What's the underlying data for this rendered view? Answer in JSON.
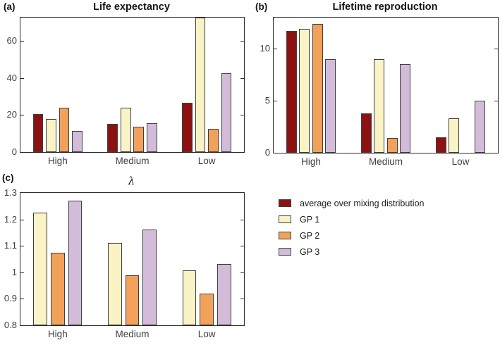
{
  "figure": {
    "background": "#ffffff",
    "panels": [
      {
        "key": "a",
        "letter": "(a)",
        "title": "Life expectancy"
      },
      {
        "key": "b",
        "letter": "(b)",
        "title": "Lifetime reproduction"
      },
      {
        "key": "c",
        "letter": "(c)",
        "title": "λ"
      }
    ],
    "legend": {
      "items": [
        {
          "label": "average over mixing distribution",
          "color": "#8c1212"
        },
        {
          "label": "GP 1",
          "color": "#faf3c5"
        },
        {
          "label": "GP 2",
          "color": "#f1a15a"
        },
        {
          "label": "GP 3",
          "color": "#d2bcd9"
        }
      ]
    },
    "colors": {
      "axis": "#2b2b2b",
      "tick_label": "#3f3f3f",
      "bar_edge": "#3f3f3f",
      "title": "#141414"
    }
  },
  "chart_data": [
    {
      "type": "bar",
      "panel": "a",
      "title": "Life expectancy",
      "categories": [
        "High",
        "Medium",
        "Low"
      ],
      "series": [
        {
          "name": "average over mixing distribution",
          "color": "#8c1212",
          "values": [
            20.5,
            15.3,
            26.5
          ]
        },
        {
          "name": "GP 1",
          "color": "#faf3c5",
          "values": [
            17.8,
            23.8,
            72.5
          ]
        },
        {
          "name": "GP 2",
          "color": "#f1a15a",
          "values": [
            23.8,
            13.7,
            12.4
          ]
        },
        {
          "name": "GP 3",
          "color": "#d2bcd9",
          "values": [
            11.5,
            15.6,
            42.7
          ]
        }
      ],
      "ylim": [
        0,
        72.5
      ],
      "yticks": [
        0,
        20,
        40,
        60
      ],
      "ytick_labels": [
        "0",
        "20",
        "40",
        "60"
      ],
      "legend_position": "none",
      "grid": false
    },
    {
      "type": "bar",
      "panel": "b",
      "title": "Lifetime reproduction",
      "categories": [
        "High",
        "Medium",
        "Low"
      ],
      "series": [
        {
          "name": "average over mixing distribution",
          "color": "#8c1212",
          "values": [
            11.7,
            3.8,
            1.5
          ]
        },
        {
          "name": "GP 1",
          "color": "#faf3c5",
          "values": [
            11.9,
            9.0,
            3.3
          ]
        },
        {
          "name": "GP 2",
          "color": "#f1a15a",
          "values": [
            12.4,
            1.4,
            0
          ]
        },
        {
          "name": "GP 3",
          "color": "#d2bcd9",
          "values": [
            9.0,
            8.5,
            5.0
          ]
        }
      ],
      "ylim": [
        0,
        13
      ],
      "yticks": [
        0,
        5,
        10
      ],
      "ytick_labels": [
        "0",
        "5",
        "10"
      ],
      "legend_position": "none",
      "grid": false
    },
    {
      "type": "bar",
      "panel": "c",
      "title": "λ",
      "categories": [
        "High",
        "Medium",
        "Low"
      ],
      "series": [
        {
          "name": "GP 1",
          "color": "#faf3c5",
          "values": [
            1.225,
            1.11,
            1.008
          ]
        },
        {
          "name": "GP 2",
          "color": "#f1a15a",
          "values": [
            1.075,
            0.988,
            0.92
          ]
        },
        {
          "name": "GP 3",
          "color": "#d2bcd9",
          "values": [
            1.272,
            1.163,
            1.032
          ]
        }
      ],
      "ylim": [
        0.8,
        1.3
      ],
      "yticks": [
        0.8,
        0.9,
        1,
        1.1,
        1.2,
        1.3
      ],
      "ytick_labels": [
        "0.8",
        "0.9",
        "1",
        "1.1",
        "1.2",
        "1.3"
      ],
      "legend_position": "right-of-panel",
      "grid": false
    }
  ]
}
